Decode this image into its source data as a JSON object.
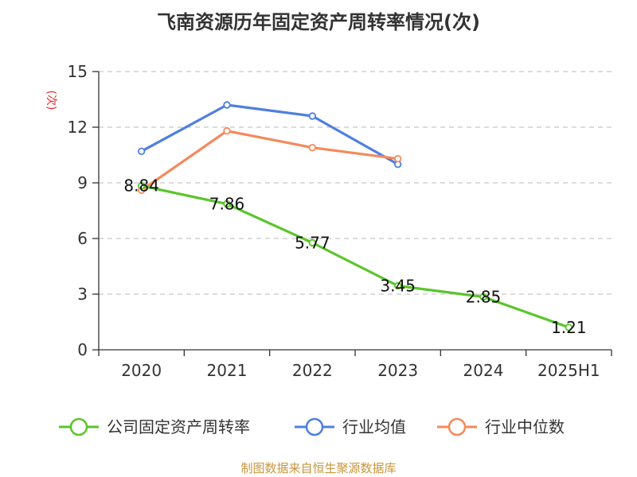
{
  "title": "飞南资源历年固定资产周转率情况(次)",
  "source": "制图数据来自恒生聚源数据库",
  "chart_data": {
    "type": "line",
    "categories": [
      "2020",
      "2021",
      "2022",
      "2023",
      "2024",
      "2025H1"
    ],
    "ylabel": "(次)",
    "ylim": [
      0,
      15
    ],
    "yticks": [
      0,
      3,
      6,
      9,
      12,
      15
    ],
    "grid": true,
    "legend_position": "bottom",
    "series": [
      {
        "name": "公司固定资产周转率",
        "color": "#5ac52a",
        "values": [
          8.84,
          7.86,
          5.77,
          3.45,
          2.85,
          1.21
        ],
        "labels": [
          "8.84",
          "7.86",
          "5.77",
          "3.45",
          "2.85",
          "1.21"
        ]
      },
      {
        "name": "行业均值",
        "color": "#4f7fe0",
        "values": [
          10.7,
          13.2,
          12.6,
          10.0,
          null,
          null
        ]
      },
      {
        "name": "行业中位数",
        "color": "#f5895a",
        "values": [
          8.6,
          11.8,
          10.9,
          10.3,
          null,
          null
        ]
      }
    ]
  }
}
